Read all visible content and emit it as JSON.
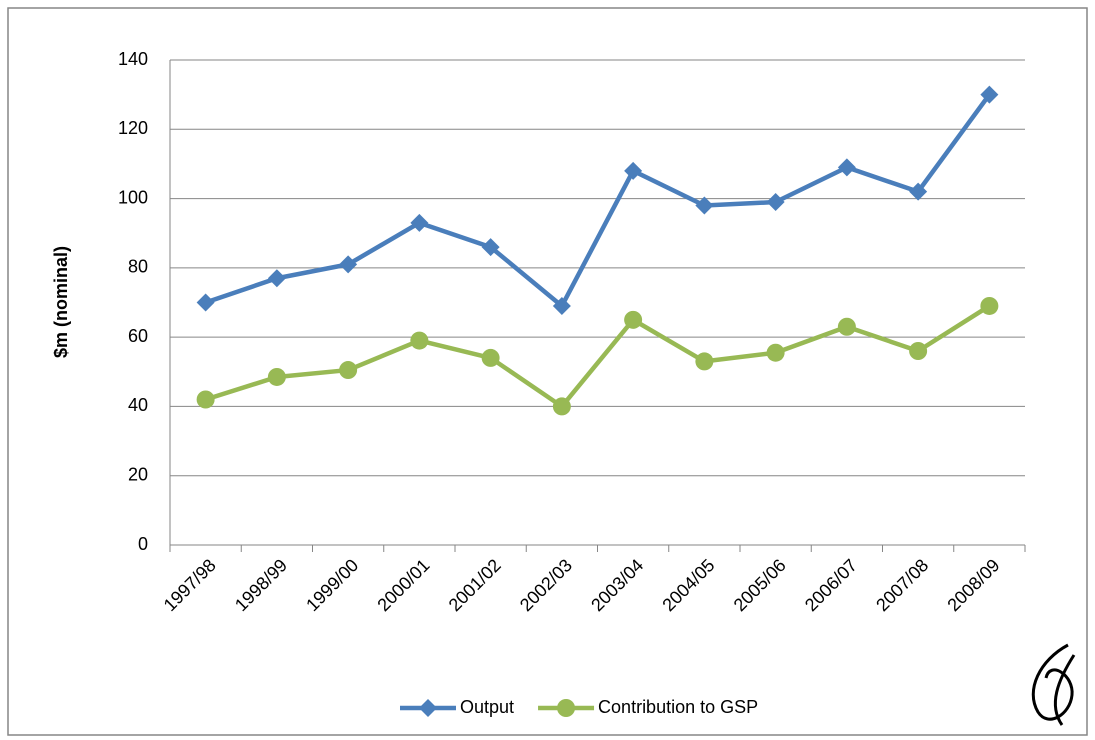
{
  "chart_data": {
    "type": "line",
    "ylabel": "$m (nominal)",
    "categories": [
      "1997/98",
      "1998/99",
      "1999/00",
      "2000/01",
      "2001/02",
      "2002/03",
      "2003/04",
      "2004/05",
      "2005/06",
      "2006/07",
      "2007/08",
      "2008/09"
    ],
    "series": [
      {
        "name": "Output",
        "color": "#4a7ebb",
        "marker": "diamond",
        "values": [
          70,
          77,
          81,
          93,
          86,
          69,
          108,
          98,
          99,
          109,
          102,
          130
        ]
      },
      {
        "name": "Contribution to GSP",
        "color": "#98b954",
        "marker": "circle",
        "values": [
          42,
          48.5,
          50.5,
          59,
          54,
          40,
          65,
          53,
          55.5,
          63,
          56,
          69
        ]
      }
    ],
    "ylim": [
      0,
      140
    ],
    "yticks": [
      0,
      20,
      40,
      60,
      80,
      100,
      120,
      140
    ],
    "grid": true,
    "legend": "bottom"
  }
}
